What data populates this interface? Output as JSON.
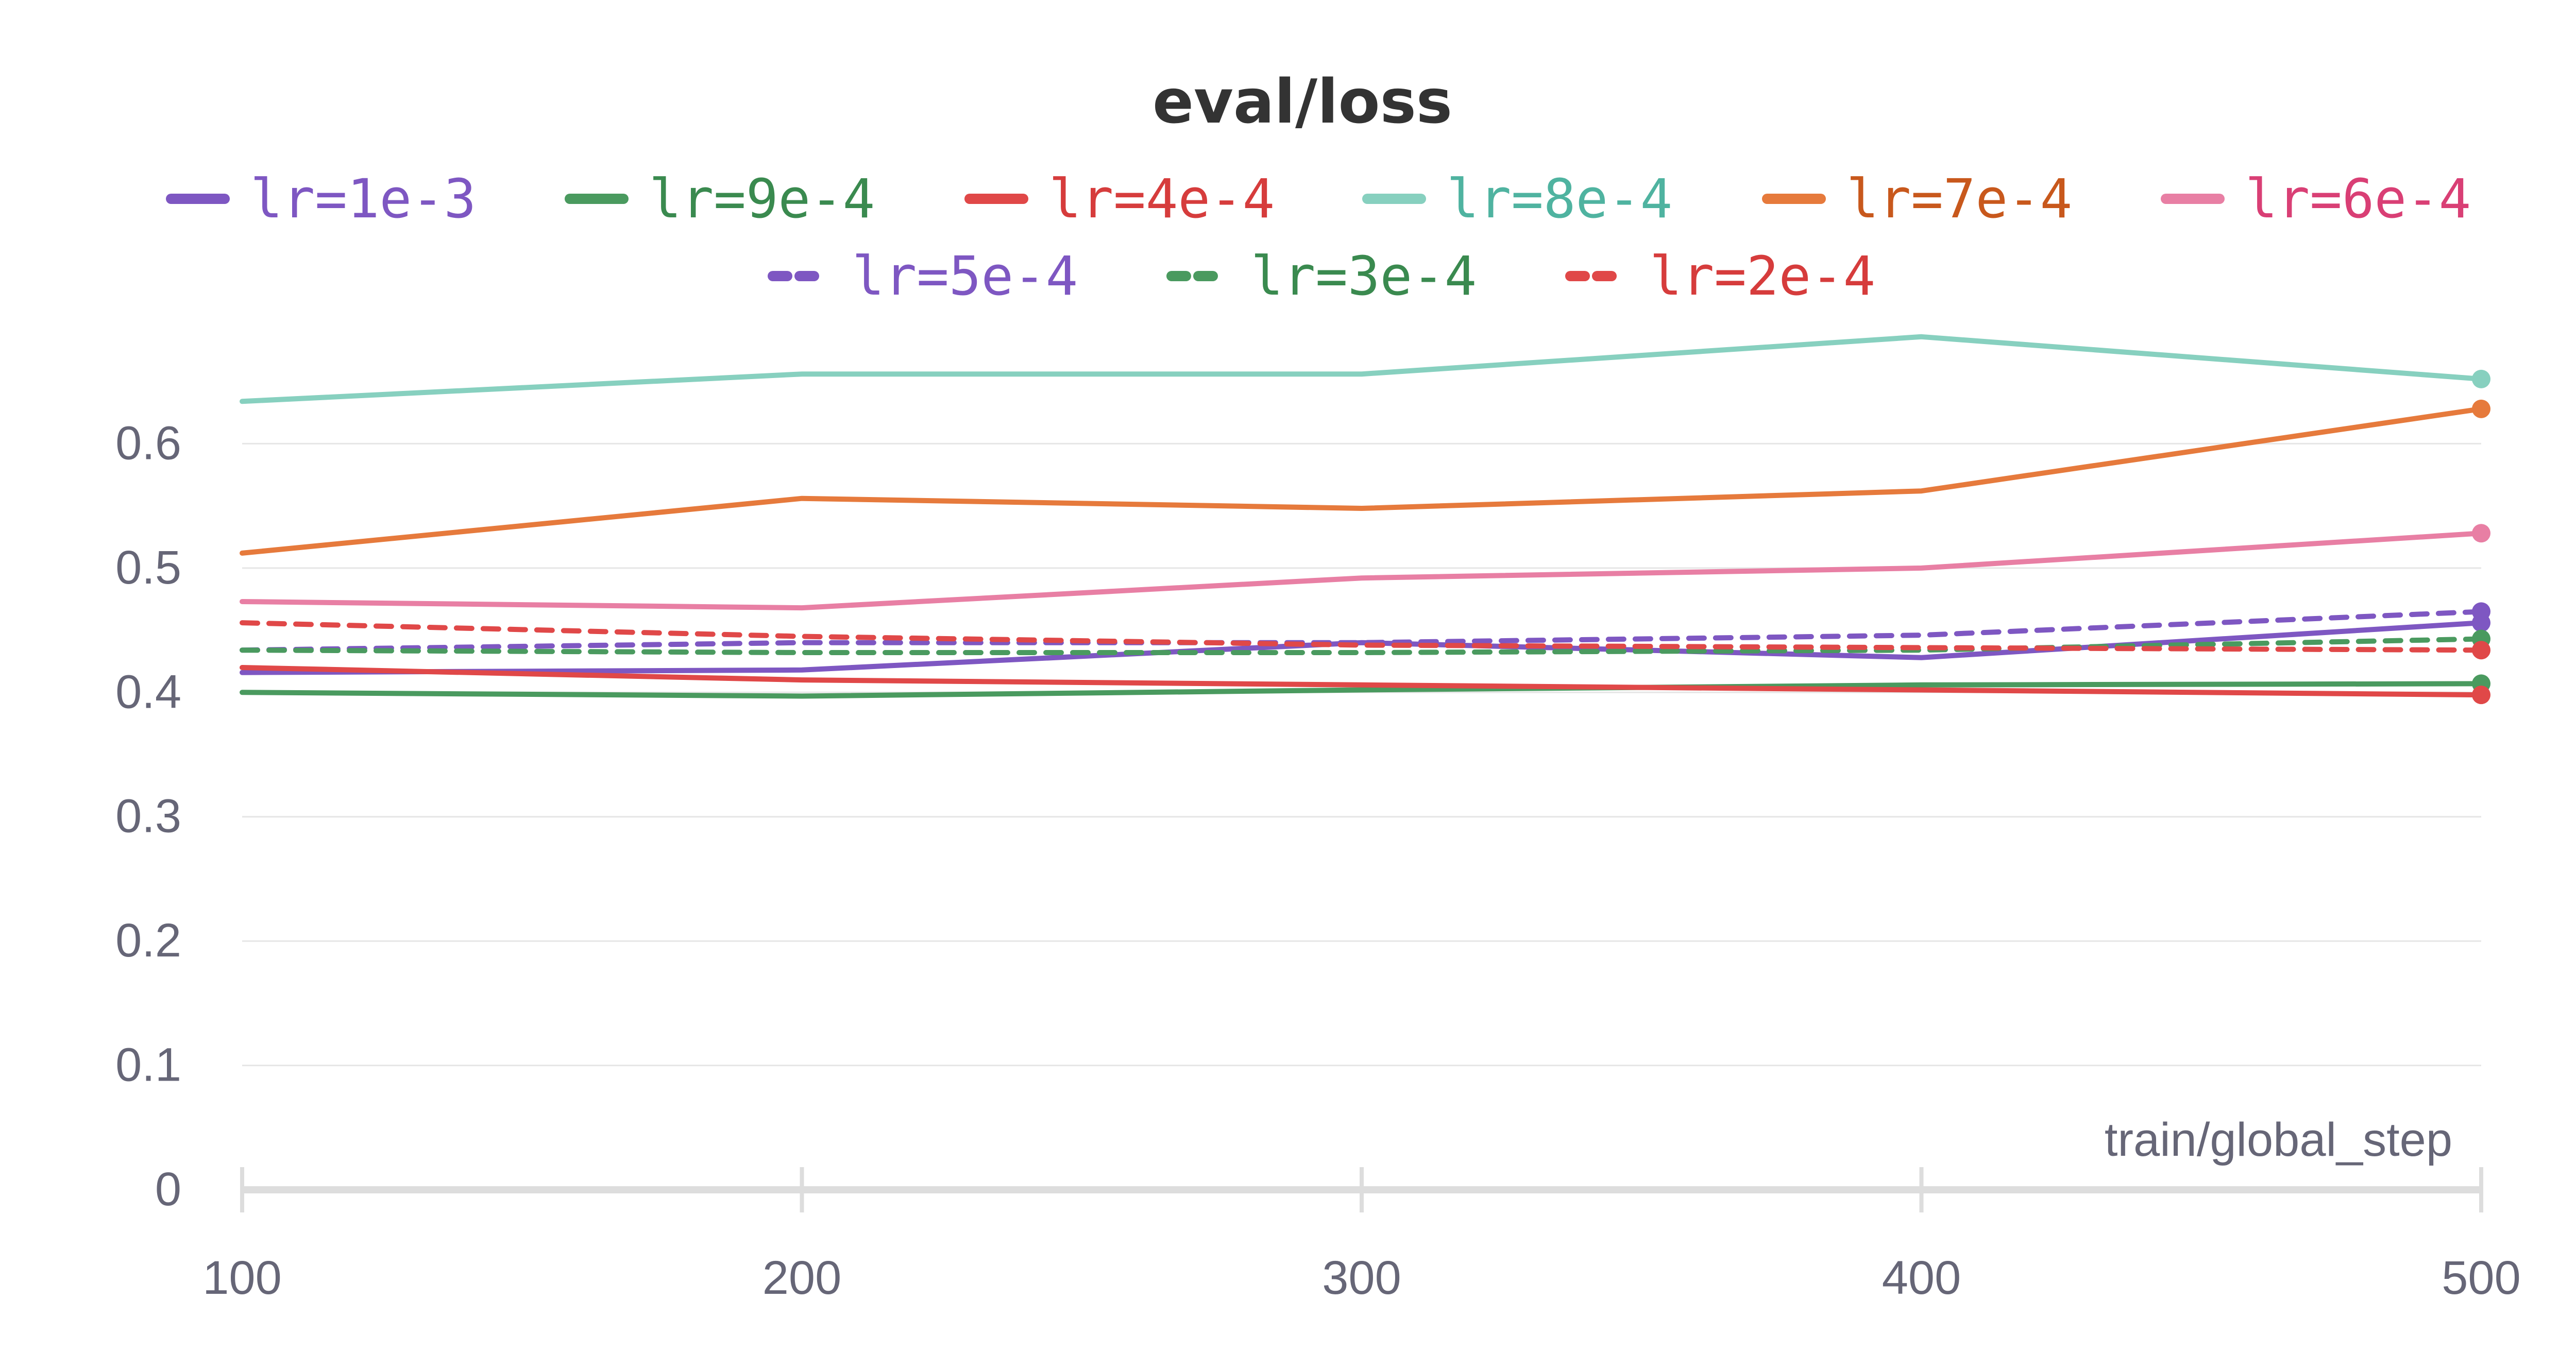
{
  "chart_data": {
    "type": "line",
    "title": "eval/loss",
    "xlabel": "train/global_step",
    "ylabel": "",
    "x": [
      100,
      200,
      300,
      400,
      500
    ],
    "xlim": [
      100,
      500
    ],
    "ylim": [
      0,
      0.7
    ],
    "xticks": [
      "100",
      "200",
      "300",
      "400",
      "500"
    ],
    "yticks": [
      "0",
      "0.1",
      "0.2",
      "0.3",
      "0.4",
      "0.5",
      "0.6"
    ],
    "grid": "horizontal",
    "legend_position": "top",
    "series": [
      {
        "name": "lr=1e-3",
        "color": "#7e57c2",
        "text_color": "#7e57c2",
        "dash": "solid",
        "values": [
          0.416,
          0.418,
          0.44,
          0.428,
          0.456
        ]
      },
      {
        "name": "lr=9e-4",
        "color": "#4a9a5f",
        "text_color": "#3a8a4f",
        "dash": "solid",
        "values": [
          0.4,
          0.397,
          0.402,
          0.406,
          0.407
        ]
      },
      {
        "name": "lr=4e-4",
        "color": "#e04848",
        "text_color": "#d63c3c",
        "dash": "solid",
        "values": [
          0.42,
          0.41,
          0.406,
          0.402,
          0.398
        ]
      },
      {
        "name": "lr=8e-4",
        "color": "#87d0bf",
        "text_color": "#4fb3a0",
        "dash": "solid",
        "values": [
          0.634,
          0.656,
          0.656,
          0.686,
          0.652
        ]
      },
      {
        "name": "lr=7e-4",
        "color": "#e67a3c",
        "text_color": "#c8581c",
        "dash": "solid",
        "values": [
          0.512,
          0.556,
          0.548,
          0.562,
          0.628
        ]
      },
      {
        "name": "lr=6e-4",
        "color": "#e87fa4",
        "text_color": "#d93f75",
        "dash": "solid",
        "values": [
          0.473,
          0.468,
          0.492,
          0.5,
          0.528
        ]
      },
      {
        "name": "lr=5e-4",
        "color": "#7e57c2",
        "text_color": "#7e57c2",
        "dash": "dashed",
        "values": [
          0.434,
          0.44,
          0.44,
          0.446,
          0.465
        ]
      },
      {
        "name": "lr=3e-4",
        "color": "#4a9a5f",
        "text_color": "#3a8a4f",
        "dash": "dashed",
        "values": [
          0.434,
          0.432,
          0.432,
          0.434,
          0.443
        ]
      },
      {
        "name": "lr=2e-4",
        "color": "#e04848",
        "text_color": "#d63c3c",
        "dash": "dashed",
        "values": [
          0.456,
          0.445,
          0.438,
          0.436,
          0.434
        ]
      }
    ]
  }
}
